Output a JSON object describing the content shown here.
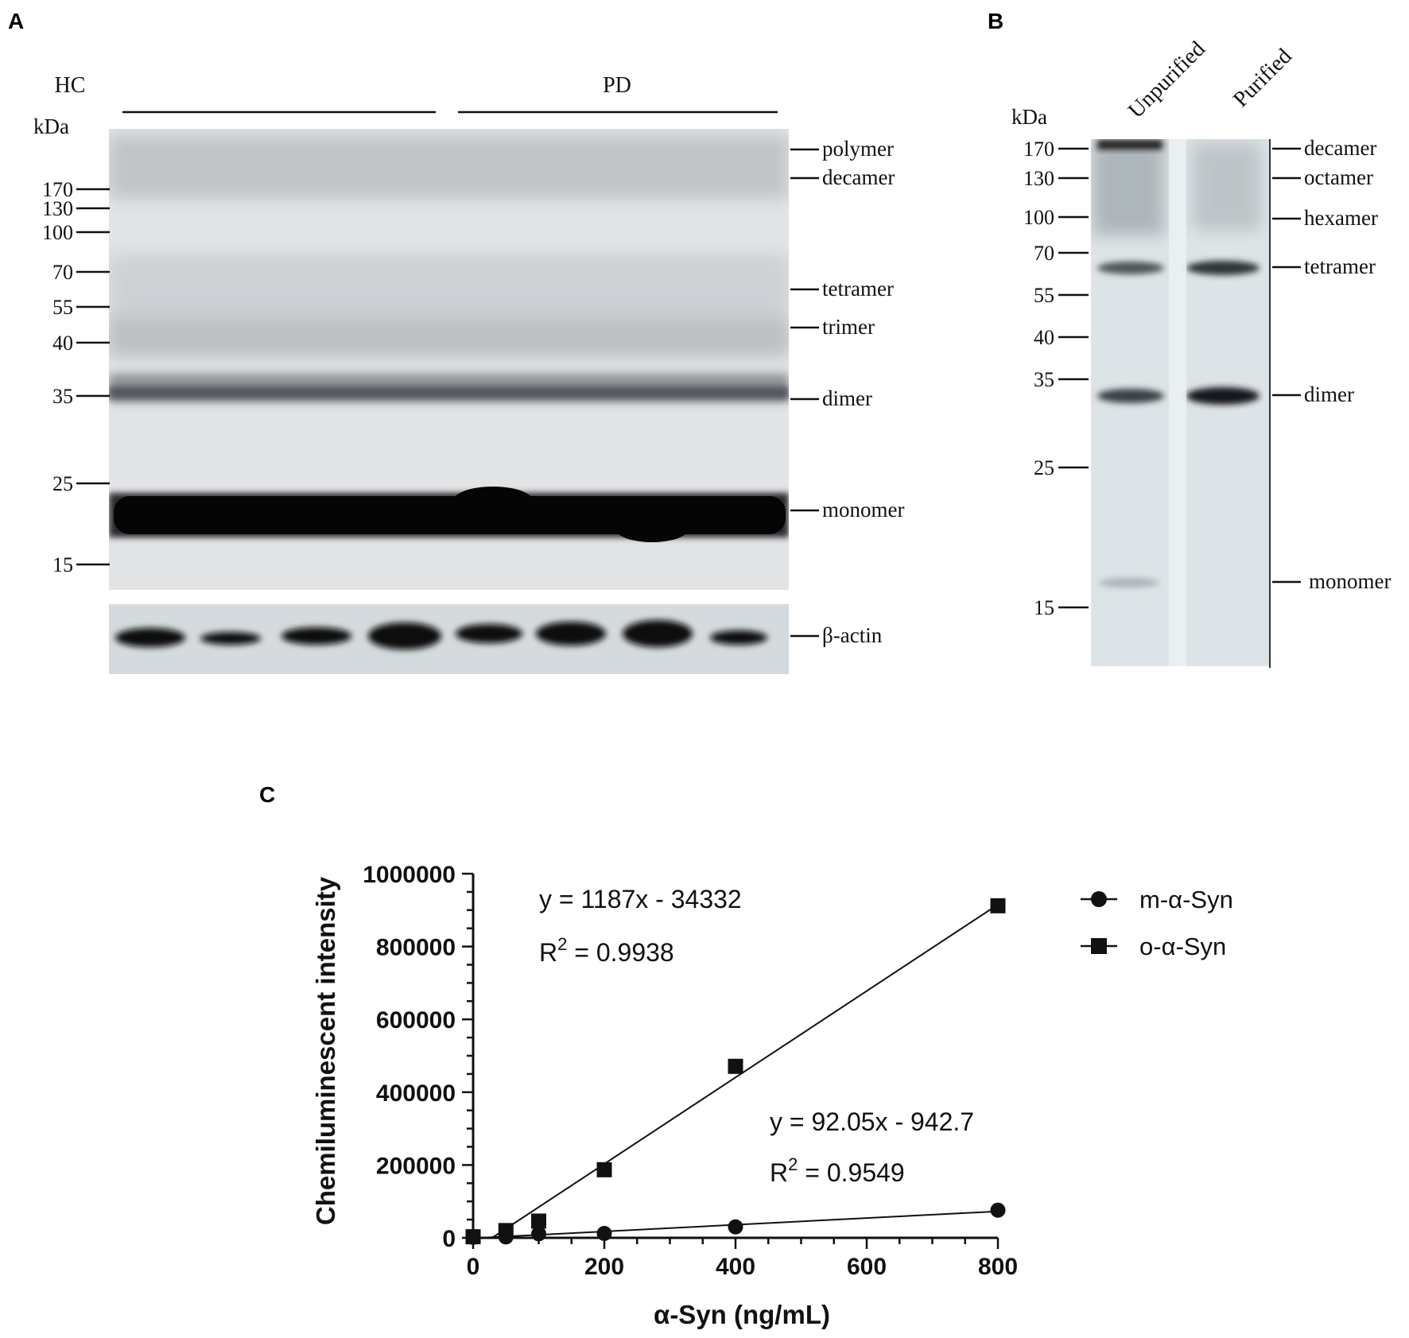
{
  "panels": {
    "A": {
      "label": "A",
      "kda_label": "kDa",
      "group_labels": [
        "HC",
        "PD"
      ],
      "ladder": [
        "170",
        "130",
        "100",
        "70",
        "55",
        "40",
        "35",
        "25",
        "15"
      ],
      "band_labels": [
        "polymer",
        "decamer",
        "tetramer",
        "trimer",
        "dimer",
        "monomer"
      ],
      "loading_label": "β-actin"
    },
    "B": {
      "label": "B",
      "kda_label": "kDa",
      "lane_labels": [
        "Unpurified",
        "Purified"
      ],
      "ladder": [
        "170",
        "130",
        "100",
        "70",
        "55",
        "40",
        "35",
        "25",
        "15"
      ],
      "band_labels": [
        "decamer",
        "octamer",
        "hexamer",
        "tetramer",
        "dimer",
        "monomer"
      ]
    },
    "C": {
      "label": "C"
    }
  },
  "chart_data": {
    "type": "scatter",
    "xlabel": "α-Syn (ng/mL)",
    "ylabel": "Chemiluminescent intensity",
    "xlim": [
      0,
      800
    ],
    "ylim": [
      0,
      1000000
    ],
    "x_ticks": [
      "0",
      "200",
      "400",
      "600",
      "800"
    ],
    "y_ticks": [
      "0",
      "200000",
      "400000",
      "600000",
      "800000",
      "1000000"
    ],
    "grid": false,
    "legend_position": "top-right",
    "series": [
      {
        "name": "m-α-Syn",
        "marker": "circle",
        "x": [
          0,
          50,
          100,
          200,
          400,
          800
        ],
        "y": [
          1500,
          2500,
          11000,
          12000,
          30000,
          76000
        ],
        "fit": {
          "slope": 92.05,
          "intercept": -942.7,
          "equation": "y = 92.05x - 942.7",
          "r2_prefix": "R",
          "r2_sup": "2",
          "r2_value": " = 0.9549"
        }
      },
      {
        "name": "o-α-Syn",
        "marker": "square",
        "x": [
          0,
          50,
          100,
          200,
          400,
          800
        ],
        "y": [
          3000,
          20000,
          46000,
          187000,
          471000,
          912000
        ],
        "fit": {
          "slope": 1187,
          "intercept": -34332,
          "equation": "y = 1187x - 34332",
          "r2_prefix": "R",
          "r2_sup": "2",
          "r2_value": " = 0.9938"
        }
      }
    ]
  }
}
